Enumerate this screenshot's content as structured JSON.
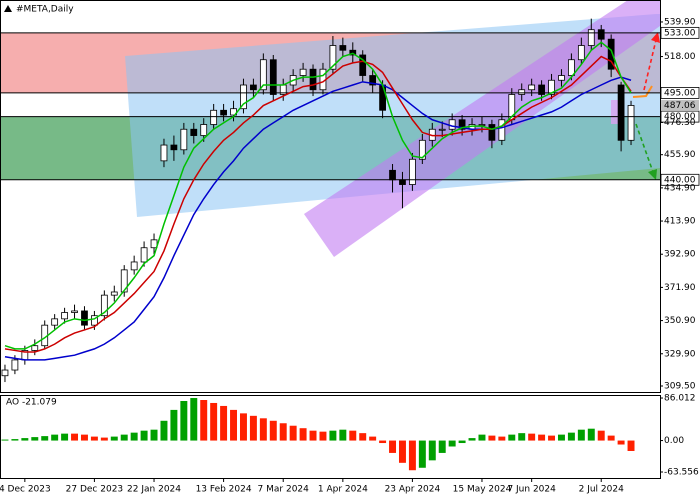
{
  "chart_data": {
    "type": "candlestick",
    "title": "#META,Daily",
    "categories": [
      null,
      null,
      "4 Dec 2023",
      null,
      null,
      null,
      null,
      null,
      null,
      "27 Dec 2023",
      null,
      null,
      null,
      null,
      null,
      "22 Jan 2024",
      null,
      null,
      null,
      null,
      null,
      null,
      "13 Feb 2024",
      null,
      null,
      null,
      null,
      null,
      "7 Mar 2024",
      null,
      null,
      null,
      null,
      null,
      "1 Apr 2024",
      null,
      null,
      null,
      null,
      null,
      null,
      "23 Apr 2024",
      null,
      null,
      null,
      null,
      null,
      null,
      "15 May 2024",
      null,
      null,
      null,
      null,
      "7 Jun 2024",
      null,
      null,
      null,
      null,
      null,
      null,
      "2 Jul 2024",
      null,
      null,
      null
    ],
    "open": [
      316,
      319.6,
      326,
      332,
      335,
      348,
      352,
      356,
      357,
      348,
      354,
      367,
      369,
      383,
      388,
      397,
      452,
      462,
      459,
      472,
      468,
      475,
      484,
      481,
      485,
      500,
      497,
      516,
      494,
      500,
      506,
      510,
      497,
      510,
      525,
      522,
      519,
      506,
      500,
      446,
      440,
      437,
      453,
      465,
      472,
      472,
      478,
      472,
      475,
      475,
      465,
      478,
      494,
      497,
      500,
      494,
      503,
      506,
      516,
      525,
      535,
      529,
      500,
      465
    ],
    "high": [
      323,
      329,
      335,
      339,
      351,
      355,
      359,
      361,
      360,
      357,
      370,
      373,
      386,
      392,
      401,
      406,
      466,
      468,
      476,
      476,
      479,
      488,
      488,
      490,
      504,
      504,
      520,
      519,
      504,
      510,
      514,
      513,
      514,
      531,
      530,
      527,
      522,
      510,
      503,
      450,
      445,
      457,
      469,
      476,
      477,
      482,
      481,
      479,
      480,
      478,
      482,
      498,
      501,
      504,
      503,
      507,
      510,
      520,
      530,
      542,
      538,
      532,
      502,
      490
    ],
    "low": [
      312,
      317,
      323,
      329,
      333,
      345,
      349,
      352,
      345,
      345,
      351,
      363,
      366,
      380,
      385,
      393,
      448,
      452,
      456,
      463,
      464,
      472,
      477,
      477,
      482,
      492,
      494,
      490,
      490,
      496,
      502,
      493,
      494,
      507,
      518,
      514,
      502,
      495,
      479,
      432,
      422,
      433,
      450,
      461,
      467,
      468,
      468,
      468,
      470,
      460,
      462,
      475,
      490,
      493,
      490,
      491,
      499,
      503,
      513,
      522,
      524,
      505,
      458,
      462
    ],
    "close": [
      319.6,
      326,
      332,
      335,
      348,
      352,
      356,
      357,
      348,
      354,
      367,
      369,
      383,
      388,
      397,
      402,
      462,
      459,
      472,
      468,
      475,
      484,
      481,
      485,
      500,
      497,
      516,
      494,
      500,
      506,
      510,
      497,
      510,
      525,
      522,
      519,
      506,
      500,
      484,
      440,
      437,
      453,
      465,
      472,
      472,
      478,
      472,
      475,
      475,
      465,
      478,
      494,
      497,
      500,
      494,
      503,
      506,
      516,
      525,
      535,
      529,
      510,
      465,
      487.06
    ],
    "up_color": "#ffffff",
    "down_color": "#000000",
    "moving_averages": [
      {
        "color": "#0000cc",
        "values": [
          328,
          327,
          326,
          326,
          326,
          327,
          328,
          329,
          331,
          333,
          336,
          340,
          345,
          350,
          358,
          366,
          378,
          392,
          405,
          418,
          428,
          437,
          445,
          452,
          460,
          466,
          472,
          476,
          480,
          484,
          487,
          490,
          493,
          496,
          498,
          500,
          502,
          501,
          500,
          497,
          492,
          487,
          482,
          478,
          476,
          474,
          473,
          472,
          472,
          472,
          473,
          475,
          477,
          479,
          481,
          483,
          486,
          490,
          494,
          497,
          500,
          503,
          505,
          503
        ]
      },
      {
        "color": "#cc0000",
        "values": [
          333,
          332,
          331,
          331,
          333,
          336,
          340,
          343,
          345,
          347,
          352,
          356,
          362,
          368,
          375,
          382,
          395,
          412,
          428,
          440,
          450,
          458,
          465,
          470,
          476,
          481,
          487,
          490,
          493,
          496,
          499,
          500,
          502,
          507,
          512,
          514,
          515,
          513,
          508,
          498,
          488,
          478,
          470,
          468,
          468,
          469,
          470,
          471,
          472,
          472,
          474,
          478,
          482,
          486,
          489,
          492,
          496,
          500,
          506,
          512,
          518,
          515,
          505,
          496
        ]
      },
      {
        "color": "#00c000",
        "values": [
          335,
          333,
          333,
          336,
          340,
          345,
          350,
          352,
          351,
          352,
          356,
          362,
          370,
          378,
          387,
          392,
          412,
          430,
          448,
          460,
          466,
          472,
          476,
          480,
          488,
          492,
          500,
          500,
          500,
          503,
          505,
          505,
          506,
          512,
          518,
          520,
          516,
          510,
          500,
          480,
          465,
          455,
          454,
          460,
          466,
          470,
          473,
          474,
          474,
          472,
          474,
          480,
          486,
          490,
          492,
          495,
          498,
          505,
          513,
          522,
          527,
          522,
          505,
          495
        ]
      }
    ],
    "ylim": [
      305.7,
      553.8
    ],
    "yticks": [
      {
        "value": 539.9,
        "label": "539.90"
      },
      {
        "value": 518,
        "label": "518.00"
      },
      {
        "value": 476.3,
        "label": "476.30"
      },
      {
        "value": 455.9,
        "label": "455.90"
      },
      {
        "value": 434.9,
        "label": "434.90"
      },
      {
        "value": 413.9,
        "label": "413.90"
      },
      {
        "value": 392.9,
        "label": "392.90"
      },
      {
        "value": 371.9,
        "label": "371.90"
      },
      {
        "value": 350.9,
        "label": "350.90"
      },
      {
        "value": 329.9,
        "label": "329.90"
      },
      {
        "value": 309.5,
        "label": "309.50"
      }
    ],
    "zones": [
      {
        "top": {
          "value": 533,
          "label": "533.00"
        },
        "bottom": {
          "value": 495,
          "label": "495.00"
        },
        "color": "#f4a0a0"
      },
      {
        "top": {
          "value": 480,
          "label": "480.00"
        },
        "bottom": {
          "value": 440,
          "label": "440.00"
        },
        "color": "#5fae72"
      }
    ],
    "current_price": {
      "value": 487.06,
      "label": "487.06"
    },
    "ao": {
      "label": "AO -21.079",
      "values": [
        2,
        3,
        5,
        7,
        9,
        12,
        14,
        14,
        12,
        8,
        6,
        8,
        12,
        16,
        20,
        22,
        40,
        62,
        80,
        86,
        82,
        76,
        70,
        62,
        55,
        50,
        45,
        40,
        35,
        30,
        25,
        20,
        18,
        20,
        22,
        20,
        15,
        8,
        -5,
        -25,
        -45,
        -60,
        -55,
        -40,
        -25,
        -12,
        -5,
        5,
        12,
        10,
        8,
        12,
        15,
        14,
        12,
        10,
        12,
        16,
        22,
        24,
        20,
        10,
        -8,
        -21.079
      ],
      "up_color": "#00a000",
      "down_color": "#ff2000",
      "ylim": [
        -75.7,
        90.1
      ],
      "yticks": [
        86.012,
        {
          "value": 0,
          "label": "0.00"
        },
        -63.556
      ]
    }
  }
}
